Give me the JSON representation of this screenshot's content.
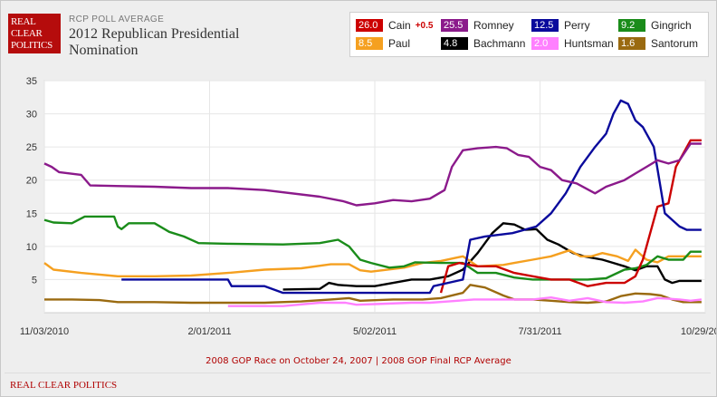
{
  "logo": {
    "lines": [
      "REAL",
      "CLEAR",
      "POLITICS"
    ]
  },
  "header": {
    "subtitle": "RCP POLL AVERAGE",
    "title": "2012 Republican Presidential Nomination"
  },
  "legend": [
    {
      "name": "Cain",
      "value": "26.0",
      "change": "+0.5",
      "color": "#cc0000"
    },
    {
      "name": "Romney",
      "value": "25.5",
      "change": "",
      "color": "#8b1a8b"
    },
    {
      "name": "Perry",
      "value": "12.5",
      "change": "",
      "color": "#0a0a9c"
    },
    {
      "name": "Gingrich",
      "value": "9.2",
      "change": "",
      "color": "#1a8c1a"
    },
    {
      "name": "Paul",
      "value": "8.5",
      "change": "",
      "color": "#f5a020"
    },
    {
      "name": "Bachmann",
      "value": "4.8",
      "change": "",
      "color": "#000000"
    },
    {
      "name": "Huntsman",
      "value": "2.0",
      "change": "",
      "color": "#ff80ff"
    },
    {
      "name": "Santorum",
      "value": "1.6",
      "change": "",
      "color": "#9a6a10"
    }
  ],
  "footer": {
    "link1": "2008 GOP Race on October 24, 2007",
    "separator": " | ",
    "link2": "2008 GOP Final RCP Average",
    "brand": "REAL CLEAR POLITICS"
  },
  "chart_data": {
    "type": "line",
    "title": "2012 Republican Presidential Nomination",
    "xlabel": "",
    "ylabel": "",
    "x_unit": "days since 11/03/2010",
    "xlim": [
      0,
      360
    ],
    "ylim": [
      0,
      35
    ],
    "yticks": [
      5,
      10,
      15,
      20,
      25,
      30,
      35
    ],
    "xticks": [
      {
        "label": "11/03/2010",
        "x": 0
      },
      {
        "label": "2/01/2011",
        "x": 90
      },
      {
        "label": "5/02/2011",
        "x": 180
      },
      {
        "label": "7/31/2011",
        "x": 270
      },
      {
        "label": "10/29/2011",
        "x": 360
      }
    ],
    "grid": true,
    "series": [
      {
        "name": "Romney",
        "color": "#8b1a8b",
        "points": [
          [
            0,
            22.5
          ],
          [
            4,
            22
          ],
          [
            8,
            21.2
          ],
          [
            20,
            20.8
          ],
          [
            25,
            19.2
          ],
          [
            60,
            19
          ],
          [
            80,
            18.8
          ],
          [
            100,
            18.8
          ],
          [
            120,
            18.5
          ],
          [
            150,
            17.5
          ],
          [
            163,
            16.8
          ],
          [
            170,
            16.2
          ],
          [
            180,
            16.5
          ],
          [
            190,
            17
          ],
          [
            200,
            16.8
          ],
          [
            210,
            17.2
          ],
          [
            218,
            18.5
          ],
          [
            222,
            22
          ],
          [
            228,
            24.5
          ],
          [
            236,
            24.8
          ],
          [
            246,
            25
          ],
          [
            252,
            24.8
          ],
          [
            258,
            23.8
          ],
          [
            264,
            23.5
          ],
          [
            270,
            22
          ],
          [
            276,
            21.5
          ],
          [
            282,
            20
          ],
          [
            290,
            19.5
          ],
          [
            300,
            18
          ],
          [
            306,
            19
          ],
          [
            316,
            20
          ],
          [
            322,
            21
          ],
          [
            328,
            22
          ],
          [
            334,
            23
          ],
          [
            340,
            22.5
          ],
          [
            346,
            23
          ],
          [
            352,
            25.5
          ],
          [
            358,
            25.5
          ]
        ]
      },
      {
        "name": "Perry",
        "color": "#0a0a9c",
        "points": [
          [
            42,
            5
          ],
          [
            80,
            5
          ],
          [
            100,
            5
          ],
          [
            102,
            4
          ],
          [
            120,
            4
          ],
          [
            130,
            3
          ],
          [
            190,
            3
          ],
          [
            210,
            3
          ],
          [
            212,
            4
          ],
          [
            228,
            5
          ],
          [
            232,
            11
          ],
          [
            240,
            11.5
          ],
          [
            255,
            12
          ],
          [
            268,
            13
          ],
          [
            276,
            15
          ],
          [
            284,
            18
          ],
          [
            292,
            22
          ],
          [
            300,
            25
          ],
          [
            306,
            27
          ],
          [
            310,
            30
          ],
          [
            314,
            32
          ],
          [
            318,
            31.5
          ],
          [
            322,
            29
          ],
          [
            326,
            28
          ],
          [
            332,
            25
          ],
          [
            338,
            15
          ],
          [
            342,
            14
          ],
          [
            346,
            13
          ],
          [
            350,
            12.5
          ],
          [
            358,
            12.5
          ]
        ]
      },
      {
        "name": "Cain",
        "color": "#cc0000",
        "points": [
          [
            216,
            3
          ],
          [
            220,
            7
          ],
          [
            226,
            7.5
          ],
          [
            236,
            7
          ],
          [
            246,
            7
          ],
          [
            256,
            6
          ],
          [
            266,
            5.5
          ],
          [
            276,
            5
          ],
          [
            286,
            5
          ],
          [
            296,
            4
          ],
          [
            306,
            4.5
          ],
          [
            316,
            4.5
          ],
          [
            322,
            5.5
          ],
          [
            326,
            8
          ],
          [
            330,
            12
          ],
          [
            334,
            16
          ],
          [
            340,
            16.5
          ],
          [
            344,
            22
          ],
          [
            348,
            24
          ],
          [
            352,
            26
          ],
          [
            358,
            26
          ]
        ]
      },
      {
        "name": "Gingrich",
        "color": "#1a8c1a",
        "points": [
          [
            0,
            14
          ],
          [
            5,
            13.6
          ],
          [
            15,
            13.5
          ],
          [
            22,
            14.5
          ],
          [
            38,
            14.5
          ],
          [
            40,
            13
          ],
          [
            42,
            12.6
          ],
          [
            46,
            13.5
          ],
          [
            60,
            13.5
          ],
          [
            68,
            12.2
          ],
          [
            76,
            11.5
          ],
          [
            84,
            10.5
          ],
          [
            100,
            10.4
          ],
          [
            130,
            10.3
          ],
          [
            150,
            10.5
          ],
          [
            160,
            11
          ],
          [
            166,
            10
          ],
          [
            172,
            8
          ],
          [
            178,
            7.5
          ],
          [
            188,
            6.8
          ],
          [
            196,
            7
          ],
          [
            202,
            7.6
          ],
          [
            216,
            7.5
          ],
          [
            228,
            7.5
          ],
          [
            236,
            6
          ],
          [
            246,
            6
          ],
          [
            256,
            5.3
          ],
          [
            266,
            5
          ],
          [
            276,
            5
          ],
          [
            286,
            5
          ],
          [
            296,
            5
          ],
          [
            306,
            5.2
          ],
          [
            316,
            6.5
          ],
          [
            322,
            6.7
          ],
          [
            328,
            7.2
          ],
          [
            334,
            8.5
          ],
          [
            340,
            8
          ],
          [
            348,
            8
          ],
          [
            352,
            9.2
          ],
          [
            358,
            9.2
          ]
        ]
      },
      {
        "name": "Paul",
        "color": "#f5a020",
        "points": [
          [
            0,
            7.5
          ],
          [
            5,
            6.5
          ],
          [
            20,
            6
          ],
          [
            40,
            5.5
          ],
          [
            60,
            5.5
          ],
          [
            80,
            5.6
          ],
          [
            100,
            6
          ],
          [
            120,
            6.5
          ],
          [
            140,
            6.7
          ],
          [
            156,
            7.3
          ],
          [
            166,
            7.3
          ],
          [
            172,
            6.4
          ],
          [
            178,
            6.2
          ],
          [
            196,
            6.8
          ],
          [
            206,
            7.5
          ],
          [
            216,
            7.8
          ],
          [
            228,
            8.5
          ],
          [
            236,
            7
          ],
          [
            250,
            7.2
          ],
          [
            256,
            7.5
          ],
          [
            266,
            8
          ],
          [
            276,
            8.5
          ],
          [
            286,
            9.4
          ],
          [
            292,
            8.5
          ],
          [
            298,
            8.5
          ],
          [
            304,
            9
          ],
          [
            312,
            8.5
          ],
          [
            318,
            7.8
          ],
          [
            322,
            9.5
          ],
          [
            328,
            8
          ],
          [
            334,
            7.6
          ],
          [
            340,
            8.5
          ],
          [
            348,
            8.5
          ],
          [
            358,
            8.5
          ]
        ]
      },
      {
        "name": "Bachmann",
        "color": "#000000",
        "points": [
          [
            130,
            3.5
          ],
          [
            150,
            3.6
          ],
          [
            155,
            4.5
          ],
          [
            160,
            4.2
          ],
          [
            170,
            4
          ],
          [
            180,
            4
          ],
          [
            190,
            4.5
          ],
          [
            200,
            5
          ],
          [
            210,
            5
          ],
          [
            220,
            5.5
          ],
          [
            228,
            6.5
          ],
          [
            236,
            9
          ],
          [
            244,
            12
          ],
          [
            250,
            13.5
          ],
          [
            256,
            13.3
          ],
          [
            262,
            12.5
          ],
          [
            268,
            12.6
          ],
          [
            274,
            11
          ],
          [
            280,
            10.3
          ],
          [
            288,
            9
          ],
          [
            294,
            8.5
          ],
          [
            304,
            8
          ],
          [
            310,
            7.5
          ],
          [
            316,
            7
          ],
          [
            322,
            6.4
          ],
          [
            328,
            7
          ],
          [
            334,
            7
          ],
          [
            338,
            5
          ],
          [
            342,
            4.5
          ],
          [
            346,
            4.8
          ],
          [
            352,
            4.8
          ],
          [
            358,
            4.8
          ]
        ]
      },
      {
        "name": "Huntsman",
        "color": "#ff80ff",
        "points": [
          [
            100,
            1
          ],
          [
            130,
            1
          ],
          [
            150,
            1.5
          ],
          [
            164,
            1.5
          ],
          [
            170,
            1.2
          ],
          [
            180,
            1.3
          ],
          [
            200,
            1.5
          ],
          [
            210,
            1.5
          ],
          [
            220,
            1.7
          ],
          [
            234,
            2
          ],
          [
            246,
            2
          ],
          [
            256,
            2
          ],
          [
            266,
            2
          ],
          [
            276,
            2.3
          ],
          [
            286,
            1.8
          ],
          [
            296,
            2.2
          ],
          [
            306,
            1.6
          ],
          [
            316,
            1.5
          ],
          [
            326,
            1.7
          ],
          [
            334,
            2.2
          ],
          [
            340,
            2.1
          ],
          [
            346,
            2
          ],
          [
            352,
            1.8
          ],
          [
            358,
            2
          ]
        ]
      },
      {
        "name": "Santorum",
        "color": "#9a6a10",
        "points": [
          [
            0,
            2
          ],
          [
            15,
            2
          ],
          [
            30,
            1.9
          ],
          [
            40,
            1.6
          ],
          [
            60,
            1.6
          ],
          [
            80,
            1.5
          ],
          [
            100,
            1.5
          ],
          [
            120,
            1.5
          ],
          [
            140,
            1.7
          ],
          [
            156,
            2
          ],
          [
            166,
            2.2
          ],
          [
            172,
            1.8
          ],
          [
            190,
            2
          ],
          [
            206,
            2
          ],
          [
            216,
            2.2
          ],
          [
            228,
            3
          ],
          [
            232,
            4.2
          ],
          [
            240,
            3.8
          ],
          [
            250,
            2.6
          ],
          [
            256,
            2
          ],
          [
            266,
            2
          ],
          [
            276,
            1.8
          ],
          [
            286,
            1.6
          ],
          [
            296,
            1.5
          ],
          [
            306,
            1.7
          ],
          [
            314,
            2.5
          ],
          [
            322,
            2.9
          ],
          [
            330,
            2.8
          ],
          [
            336,
            2.6
          ],
          [
            342,
            2
          ],
          [
            348,
            1.6
          ],
          [
            358,
            1.6
          ]
        ]
      }
    ]
  }
}
